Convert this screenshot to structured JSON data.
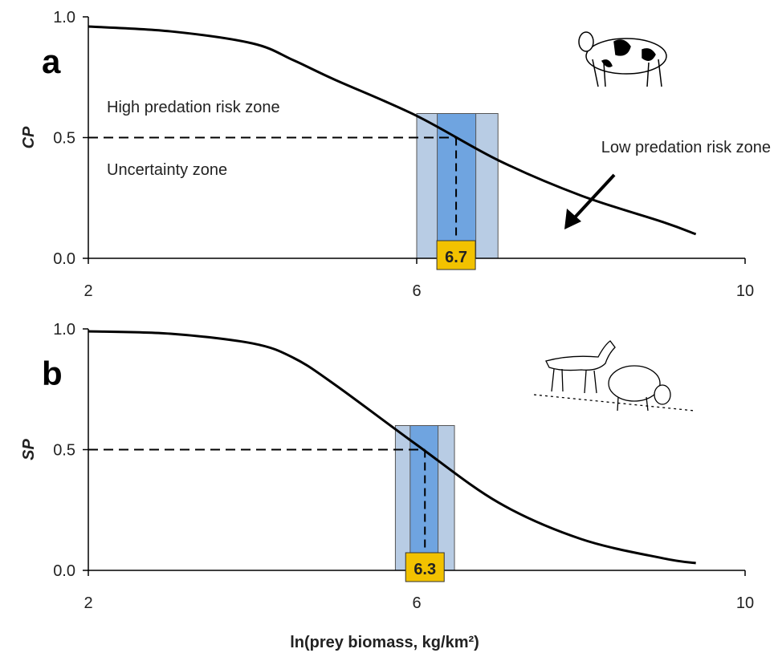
{
  "chart_data": [
    {
      "type": "line",
      "panel": "a",
      "ylabel": "CP",
      "x": [
        2,
        3,
        4,
        4.5,
        5,
        6,
        7,
        8,
        9,
        9.4
      ],
      "values": [
        0.96,
        0.94,
        0.89,
        0.82,
        0.74,
        0.59,
        0.405,
        0.26,
        0.15,
        0.1
      ],
      "color": "#000000",
      "xlim": [
        2,
        10
      ],
      "xticks": [
        2,
        6,
        10
      ],
      "ylim": [
        0,
        1
      ],
      "yticks": [
        {
          "value": 0,
          "label": "0.0"
        },
        {
          "value": 0.5,
          "label": "0.5"
        },
        {
          "value": 1,
          "label": "1.0"
        }
      ],
      "outer_band": [
        6.0,
        6.99
      ],
      "inner_band": [
        6.25,
        6.72
      ],
      "outer_color": "#b8cce4",
      "inner_color": "#6fa4e0",
      "threshold_x": 6.48,
      "threshold_y": 0.5,
      "marker_label": "6.7",
      "annotations": [
        "High predation risk zone",
        "Uncertainty zone",
        "Low predation risk zone"
      ]
    },
    {
      "type": "line",
      "panel": "b",
      "ylabel": "SP",
      "xlabel": "ln(prey biomass, kg/km²)",
      "x": [
        2,
        3,
        4,
        4.5,
        5,
        6,
        7,
        8,
        9,
        9.4
      ],
      "values": [
        0.99,
        0.98,
        0.94,
        0.88,
        0.77,
        0.52,
        0.28,
        0.13,
        0.05,
        0.03
      ],
      "color": "#000000",
      "xlim": [
        2,
        10
      ],
      "xticks": [
        2,
        6,
        10
      ],
      "ylim": [
        0,
        1
      ],
      "yticks": [
        {
          "value": 0,
          "label": "0.0"
        },
        {
          "value": 0.5,
          "label": "0.5"
        },
        {
          "value": 1,
          "label": "1.0"
        }
      ],
      "outer_band": [
        5.74,
        6.46
      ],
      "inner_band": [
        5.92,
        6.26
      ],
      "outer_color": "#b8cce4",
      "inner_color": "#6fa4e0",
      "threshold_x": 6.1,
      "threshold_y": 0.5,
      "marker_label": "6.3"
    }
  ]
}
